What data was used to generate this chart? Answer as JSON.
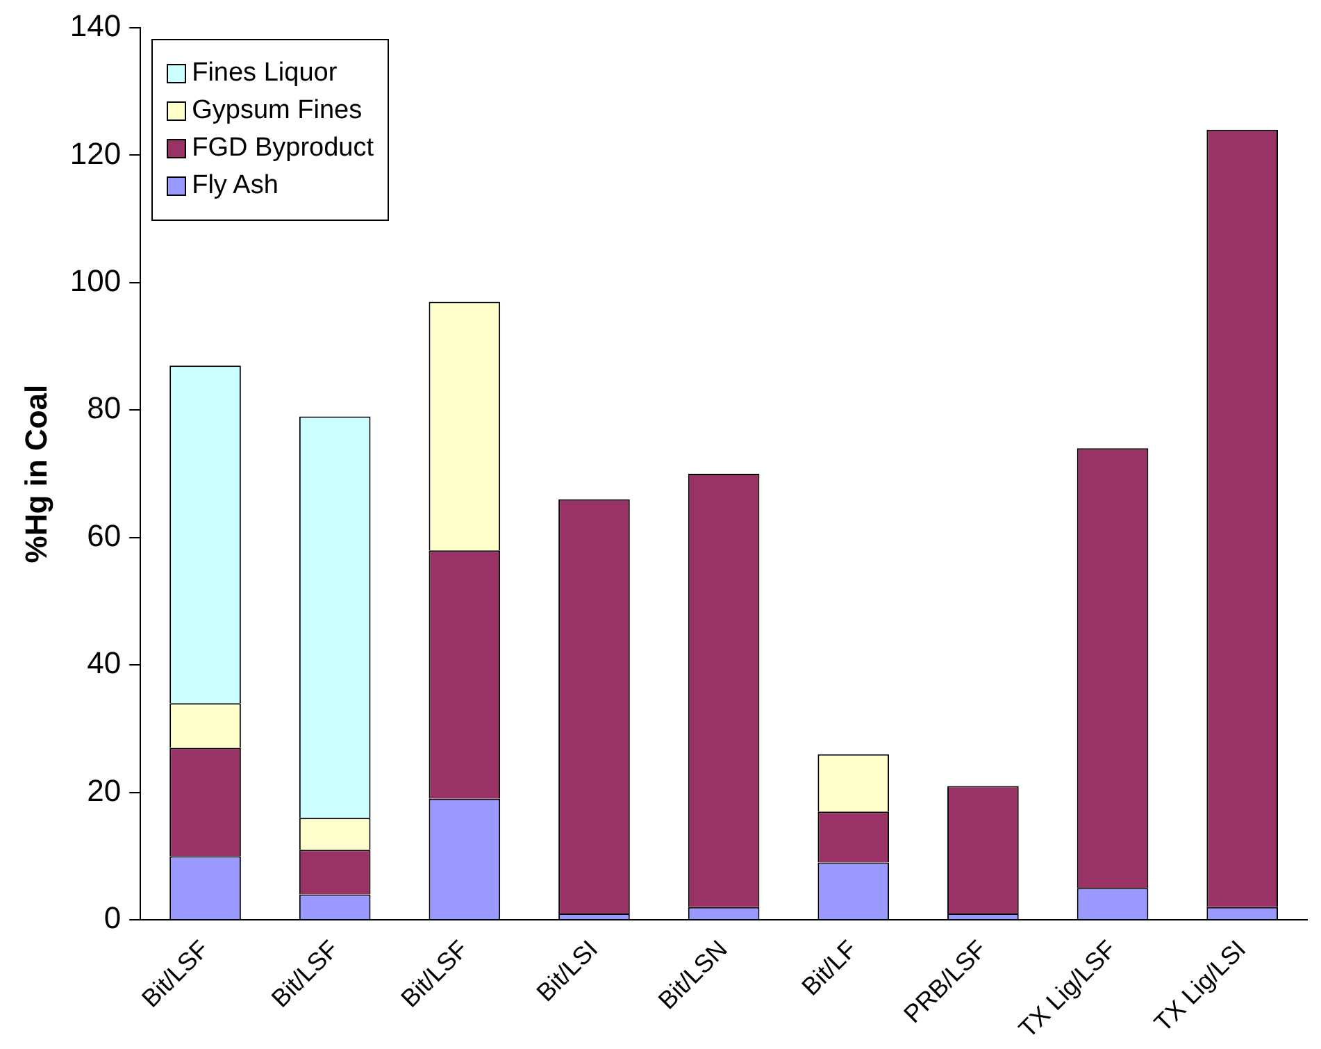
{
  "chart_data": {
    "type": "bar",
    "stacked": true,
    "ylabel": "%Hg in Coal",
    "categories": [
      "Bit/LSF",
      "Bit/LSF",
      "Bit/LSF",
      "Bit/LSI",
      "Bit/LSN",
      "Bit/LF",
      "PRB/LSF",
      "TX Lig/LSF",
      "TX Lig/LSI"
    ],
    "series": [
      {
        "name": "Fly Ash",
        "color": "#9999ff",
        "values": [
          10,
          4,
          19,
          1,
          2,
          9,
          1,
          5,
          2
        ]
      },
      {
        "name": "FGD Byproduct",
        "color": "#993366",
        "values": [
          17,
          7,
          39,
          65,
          68,
          8,
          20,
          69,
          122
        ]
      },
      {
        "name": "Gypsum Fines",
        "color": "#ffffcc",
        "values": [
          7,
          5,
          39,
          null,
          null,
          9,
          null,
          null,
          null
        ]
      },
      {
        "name": "Fines Liquor",
        "color": "#ccffff",
        "values": [
          53,
          63,
          null,
          null,
          null,
          null,
          null,
          null,
          null
        ]
      }
    ],
    "ylim": [
      0,
      140
    ],
    "yticks": [
      0,
      20,
      40,
      60,
      80,
      100,
      120,
      140
    ],
    "grid": false,
    "legend": "top left"
  }
}
